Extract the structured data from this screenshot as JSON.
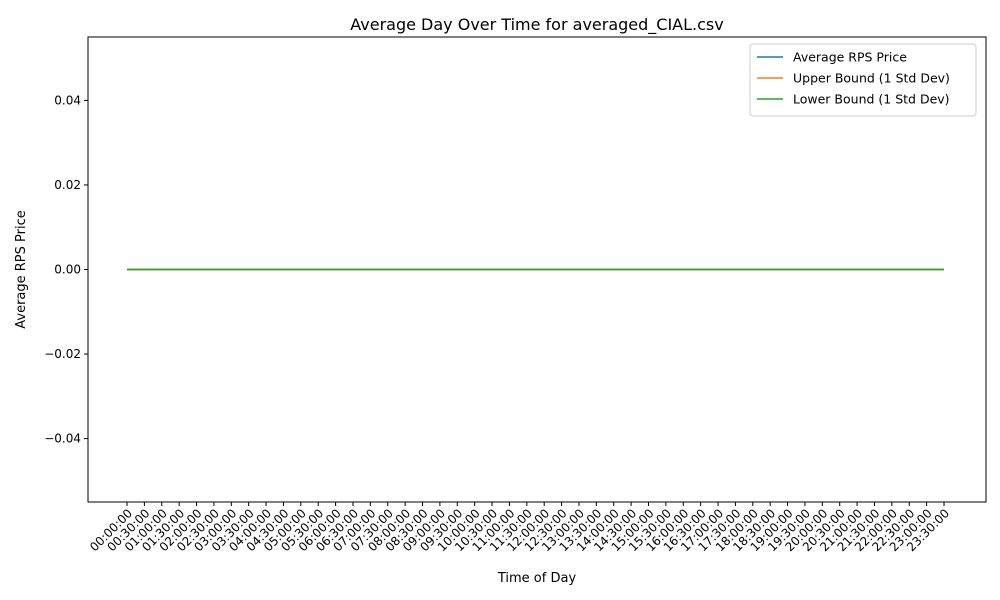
{
  "chart_data": {
    "type": "line",
    "title": "Average Day Over Time for averaged_CIAL.csv",
    "xlabel": "Time of Day",
    "ylabel": "Average RPS Price",
    "categories": [
      "00:00:00",
      "00:30:00",
      "01:00:00",
      "01:30:00",
      "02:00:00",
      "02:30:00",
      "03:00:00",
      "03:30:00",
      "04:00:00",
      "04:30:00",
      "05:00:00",
      "05:30:00",
      "06:00:00",
      "06:30:00",
      "07:00:00",
      "07:30:00",
      "08:00:00",
      "08:30:00",
      "09:00:00",
      "09:30:00",
      "10:00:00",
      "10:30:00",
      "11:00:00",
      "11:30:00",
      "12:00:00",
      "12:30:00",
      "13:00:00",
      "13:30:00",
      "14:00:00",
      "14:30:00",
      "15:00:00",
      "15:30:00",
      "16:00:00",
      "16:30:00",
      "17:00:00",
      "17:30:00",
      "18:00:00",
      "18:30:00",
      "19:00:00",
      "19:30:00",
      "20:00:00",
      "20:30:00",
      "21:00:00",
      "21:30:00",
      "22:00:00",
      "22:30:00",
      "23:00:00",
      "23:30:00"
    ],
    "series": [
      {
        "name": "Average RPS Price",
        "color": "#1f77b4",
        "values": [
          0,
          0,
          0,
          0,
          0,
          0,
          0,
          0,
          0,
          0,
          0,
          0,
          0,
          0,
          0,
          0,
          0,
          0,
          0,
          0,
          0,
          0,
          0,
          0,
          0,
          0,
          0,
          0,
          0,
          0,
          0,
          0,
          0,
          0,
          0,
          0,
          0,
          0,
          0,
          0,
          0,
          0,
          0,
          0,
          0,
          0,
          0,
          0
        ]
      },
      {
        "name": "Upper Bound (1 Std Dev)",
        "color": "#ff7f0e",
        "values": [
          0,
          0,
          0,
          0,
          0,
          0,
          0,
          0,
          0,
          0,
          0,
          0,
          0,
          0,
          0,
          0,
          0,
          0,
          0,
          0,
          0,
          0,
          0,
          0,
          0,
          0,
          0,
          0,
          0,
          0,
          0,
          0,
          0,
          0,
          0,
          0,
          0,
          0,
          0,
          0,
          0,
          0,
          0,
          0,
          0,
          0,
          0,
          0
        ]
      },
      {
        "name": "Lower Bound (1 Std Dev)",
        "color": "#2ca02c",
        "values": [
          0,
          0,
          0,
          0,
          0,
          0,
          0,
          0,
          0,
          0,
          0,
          0,
          0,
          0,
          0,
          0,
          0,
          0,
          0,
          0,
          0,
          0,
          0,
          0,
          0,
          0,
          0,
          0,
          0,
          0,
          0,
          0,
          0,
          0,
          0,
          0,
          0,
          0,
          0,
          0,
          0,
          0,
          0,
          0,
          0,
          0,
          0,
          0
        ]
      }
    ],
    "ylim": [
      -0.055,
      0.055
    ],
    "yticks": [
      -0.04,
      -0.02,
      0.0,
      0.02,
      0.04
    ],
    "ytick_labels": [
      "−0.04",
      "−0.02",
      "0.00",
      "0.02",
      "0.04"
    ],
    "grid": false,
    "legend_position": "top-right"
  }
}
